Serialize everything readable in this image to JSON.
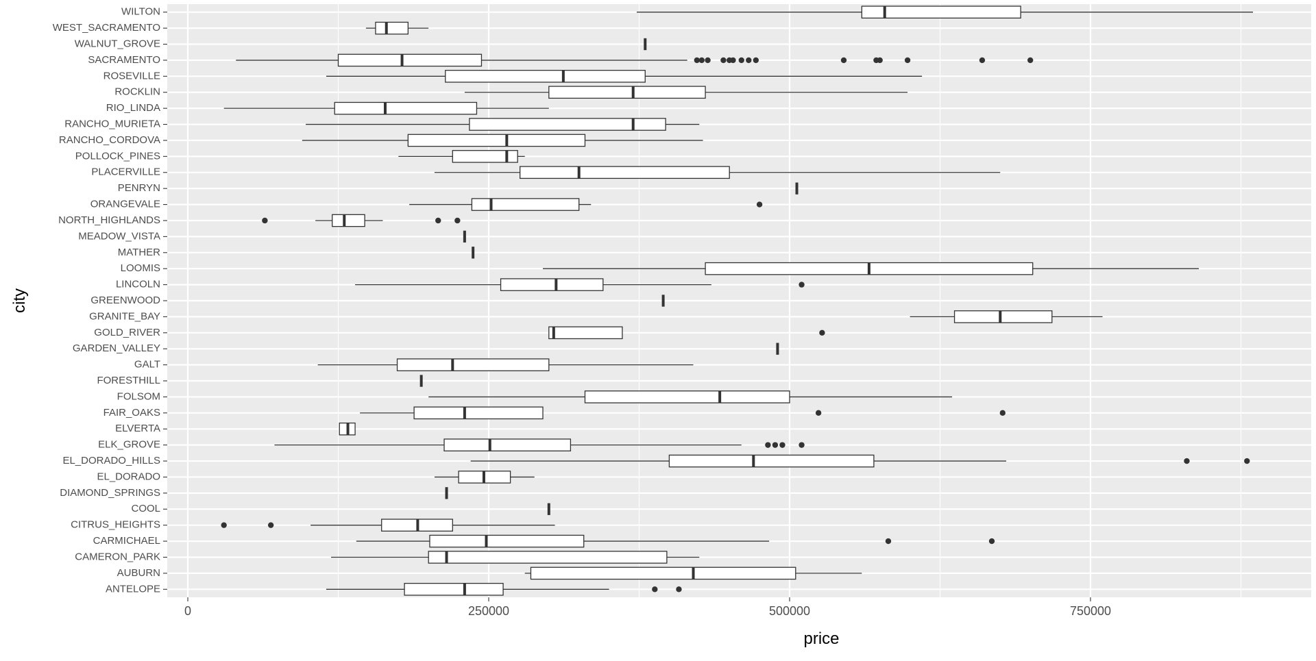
{
  "chart_data": {
    "type": "boxplot",
    "orientation": "horizontal",
    "xlabel": "price",
    "ylabel": "city",
    "xlim": [
      0,
      900000
    ],
    "x_ticks": [
      0,
      250000,
      500000,
      750000
    ],
    "x_tick_labels": [
      "0",
      "250000",
      "500000",
      "750000"
    ],
    "grid": true,
    "legend": "none",
    "colors": {
      "panel": "#ebebeb",
      "grid": "#ffffff",
      "box_fill": "#ffffff",
      "box_line": "#333333",
      "outlier": "#333333",
      "text": "#4d4d4d",
      "title": "#000000"
    },
    "series": [
      {
        "city": "ANTELOPE",
        "min": 115000,
        "q1": 180000,
        "median": 230000,
        "q3": 262000,
        "max": 350000,
        "outliers": [
          388000,
          408000
        ]
      },
      {
        "city": "AUBURN",
        "min": 280000,
        "q1": 285000,
        "median": 420000,
        "q3": 505000,
        "max": 560000,
        "outliers": []
      },
      {
        "city": "CAMERON_PARK",
        "min": 119000,
        "q1": 200000,
        "median": 215000,
        "q3": 398000,
        "max": 425000,
        "outliers": []
      },
      {
        "city": "CARMICHAEL",
        "min": 140000,
        "q1": 201000,
        "median": 248000,
        "q3": 329000,
        "max": 483000,
        "outliers": [
          582000,
          668000
        ]
      },
      {
        "city": "CITRUS_HEIGHTS",
        "min": 102000,
        "q1": 161000,
        "median": 191000,
        "q3": 220000,
        "max": 305000,
        "outliers": [
          30000,
          69000
        ]
      },
      {
        "city": "COOL",
        "min": 300000,
        "q1": 300000,
        "median": 300000,
        "q3": 300000,
        "max": 300000,
        "outliers": []
      },
      {
        "city": "DIAMOND_SPRINGS",
        "min": 215000,
        "q1": 215000,
        "median": 215000,
        "q3": 215000,
        "max": 215000,
        "outliers": []
      },
      {
        "city": "EL_DORADO",
        "min": 205000,
        "q1": 225000,
        "median": 246000,
        "q3": 268000,
        "max": 288000,
        "outliers": []
      },
      {
        "city": "EL_DORADO_HILLS",
        "min": 235000,
        "q1": 400000,
        "median": 470000,
        "q3": 570000,
        "max": 680000,
        "outliers": [
          830000,
          880000
        ]
      },
      {
        "city": "ELK_GROVE",
        "min": 72000,
        "q1": 213000,
        "median": 251000,
        "q3": 318000,
        "max": 460000,
        "outliers": [
          482000,
          488000,
          494000,
          510000
        ]
      },
      {
        "city": "ELVERTA",
        "min": 126000,
        "q1": 126000,
        "median": 133000,
        "q3": 139000,
        "max": 139000,
        "outliers": []
      },
      {
        "city": "FAIR_OAKS",
        "min": 143000,
        "q1": 188000,
        "median": 230000,
        "q3": 295000,
        "max": 295000,
        "outliers": [
          524000,
          677000
        ]
      },
      {
        "city": "FOLSOM",
        "min": 200000,
        "q1": 330000,
        "median": 442000,
        "q3": 500000,
        "max": 635000,
        "outliers": []
      },
      {
        "city": "FORESTHILL",
        "min": 194000,
        "q1": 194000,
        "median": 194000,
        "q3": 194000,
        "max": 194000,
        "outliers": []
      },
      {
        "city": "GALT",
        "min": 108000,
        "q1": 174000,
        "median": 220000,
        "q3": 300000,
        "max": 420000,
        "outliers": []
      },
      {
        "city": "GARDEN_VALLEY",
        "min": 490000,
        "q1": 490000,
        "median": 490000,
        "q3": 490000,
        "max": 490000,
        "outliers": []
      },
      {
        "city": "GOLD_RIVER",
        "min": 300000,
        "q1": 300000,
        "median": 304000,
        "q3": 361000,
        "max": 361000,
        "outliers": [
          527000
        ]
      },
      {
        "city": "GRANITE_BAY",
        "min": 600000,
        "q1": 637000,
        "median": 675000,
        "q3": 718000,
        "max": 760000,
        "outliers": []
      },
      {
        "city": "GREENWOOD",
        "min": 395000,
        "q1": 395000,
        "median": 395000,
        "q3": 395000,
        "max": 395000,
        "outliers": []
      },
      {
        "city": "LINCOLN",
        "min": 139000,
        "q1": 260000,
        "median": 306000,
        "q3": 345000,
        "max": 435000,
        "outliers": [
          510000
        ]
      },
      {
        "city": "LOOMIS",
        "min": 295000,
        "q1": 430000,
        "median": 566000,
        "q3": 702000,
        "max": 840000,
        "outliers": []
      },
      {
        "city": "MATHER",
        "min": 237000,
        "q1": 237000,
        "median": 237000,
        "q3": 237000,
        "max": 237000,
        "outliers": []
      },
      {
        "city": "MEADOW_VISTA",
        "min": 230000,
        "q1": 230000,
        "median": 230000,
        "q3": 230000,
        "max": 230000,
        "outliers": []
      },
      {
        "city": "NORTH_HIGHLANDS",
        "min": 106000,
        "q1": 120000,
        "median": 130000,
        "q3": 147000,
        "max": 162000,
        "outliers": [
          64000,
          208000,
          224000
        ]
      },
      {
        "city": "ORANGEVALE",
        "min": 184000,
        "q1": 236000,
        "median": 252000,
        "q3": 325000,
        "max": 335000,
        "outliers": [
          475000
        ]
      },
      {
        "city": "PENRYN",
        "min": 506000,
        "q1": 506000,
        "median": 506000,
        "q3": 506000,
        "max": 506000,
        "outliers": []
      },
      {
        "city": "PLACERVILLE",
        "min": 205000,
        "q1": 276000,
        "median": 325000,
        "q3": 450000,
        "max": 675000,
        "outliers": []
      },
      {
        "city": "POLLOCK_PINES",
        "min": 175000,
        "q1": 220000,
        "median": 265000,
        "q3": 274000,
        "max": 280000,
        "outliers": []
      },
      {
        "city": "RANCHO_CORDOVA",
        "min": 95000,
        "q1": 183000,
        "median": 265000,
        "q3": 330000,
        "max": 428000,
        "outliers": []
      },
      {
        "city": "RANCHO_MURIETA",
        "min": 98000,
        "q1": 234000,
        "median": 370000,
        "q3": 397000,
        "max": 425000,
        "outliers": []
      },
      {
        "city": "RIO_LINDA",
        "min": 30000,
        "q1": 122000,
        "median": 164000,
        "q3": 240000,
        "max": 300000,
        "outliers": []
      },
      {
        "city": "ROCKLIN",
        "min": 230000,
        "q1": 300000,
        "median": 370000,
        "q3": 430000,
        "max": 598000,
        "outliers": []
      },
      {
        "city": "ROSEVILLE",
        "min": 115000,
        "q1": 214000,
        "median": 312000,
        "q3": 380000,
        "max": 610000,
        "outliers": []
      },
      {
        "city": "SACRAMENTO",
        "min": 40000,
        "q1": 125000,
        "median": 178000,
        "q3": 244000,
        "max": 415000,
        "outliers": [
          423000,
          427000,
          432000,
          445000,
          450000,
          453000,
          460000,
          466000,
          472000,
          545000,
          572000,
          575000,
          598000,
          660000,
          700000
        ]
      },
      {
        "city": "WALNUT_GROVE",
        "min": 380000,
        "q1": 380000,
        "median": 380000,
        "q3": 380000,
        "max": 380000,
        "outliers": []
      },
      {
        "city": "WEST_SACRAMENTO",
        "min": 148000,
        "q1": 156000,
        "median": 165000,
        "q3": 183000,
        "max": 200000,
        "outliers": []
      },
      {
        "city": "WILTON",
        "min": 373000,
        "q1": 560000,
        "median": 579000,
        "q3": 692000,
        "max": 885000,
        "outliers": []
      }
    ]
  }
}
